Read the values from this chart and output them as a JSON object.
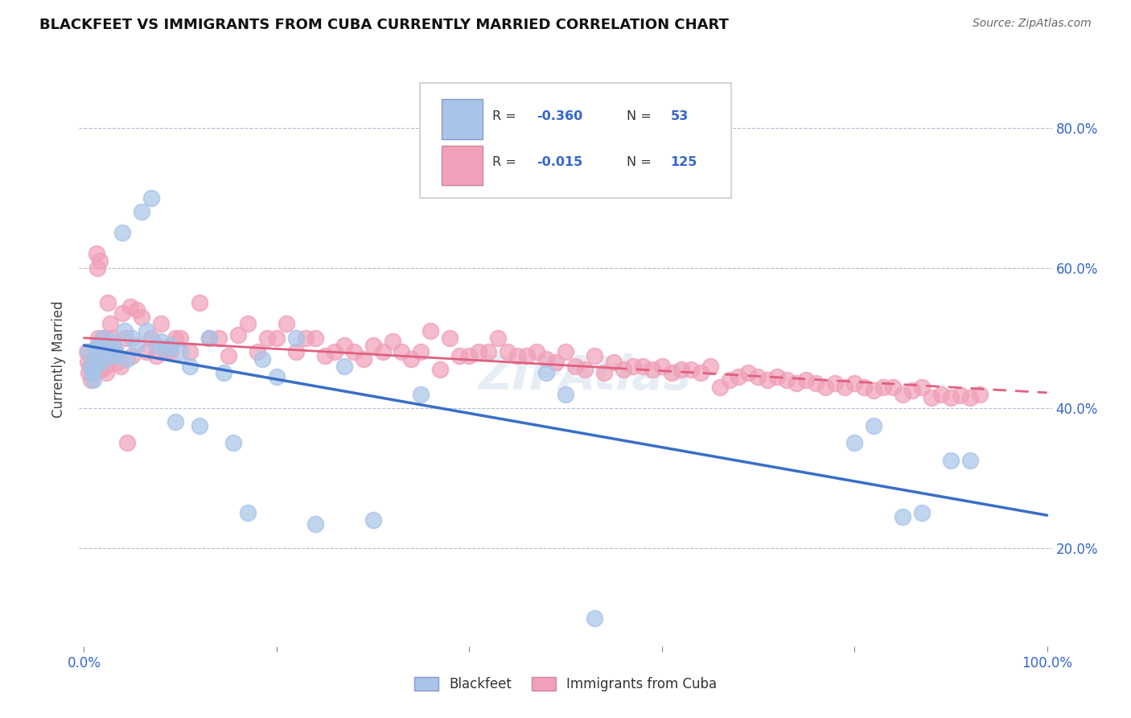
{
  "title": "BLACKFEET VS IMMIGRANTS FROM CUBA CURRENTLY MARRIED CORRELATION CHART",
  "source": "Source: ZipAtlas.com",
  "ylabel": "Currently Married",
  "legend_label1": "Blackfeet",
  "legend_label2": "Immigrants from Cuba",
  "color_blue": "#a8c4e8",
  "color_pink": "#f0a0b8",
  "line_blue": "#3a6ec8",
  "line_pink": "#e06080",
  "watermark": "ZIPAtlas",
  "yticks": [
    0.2,
    0.4,
    0.6,
    0.8
  ],
  "ytick_labels": [
    "20.0%",
    "40.0%",
    "60.0%",
    "80.0%"
  ],
  "xlim": [
    -0.005,
    1.005
  ],
  "ylim": [
    0.06,
    0.88
  ],
  "blackfeet_x": [
    0.005,
    0.007,
    0.008,
    0.009,
    0.01,
    0.012,
    0.013,
    0.015,
    0.016,
    0.018,
    0.02,
    0.022,
    0.025,
    0.027,
    0.03,
    0.032,
    0.035,
    0.04,
    0.042,
    0.045,
    0.05,
    0.055,
    0.06,
    0.065,
    0.07,
    0.075,
    0.08,
    0.085,
    0.09,
    0.095,
    0.1,
    0.11,
    0.12,
    0.13,
    0.145,
    0.155,
    0.17,
    0.185,
    0.2,
    0.22,
    0.24,
    0.27,
    0.3,
    0.35,
    0.48,
    0.5,
    0.53,
    0.8,
    0.82,
    0.85,
    0.87,
    0.9,
    0.92
  ],
  "blackfeet_y": [
    0.48,
    0.46,
    0.455,
    0.45,
    0.44,
    0.485,
    0.475,
    0.49,
    0.47,
    0.465,
    0.5,
    0.48,
    0.49,
    0.475,
    0.495,
    0.485,
    0.475,
    0.65,
    0.51,
    0.47,
    0.5,
    0.49,
    0.68,
    0.51,
    0.7,
    0.49,
    0.495,
    0.485,
    0.49,
    0.38,
    0.48,
    0.46,
    0.375,
    0.5,
    0.45,
    0.35,
    0.25,
    0.47,
    0.445,
    0.5,
    0.235,
    0.46,
    0.24,
    0.42,
    0.45,
    0.42,
    0.1,
    0.35,
    0.375,
    0.245,
    0.25,
    0.325,
    0.325
  ],
  "cuba_x": [
    0.003,
    0.004,
    0.005,
    0.006,
    0.007,
    0.008,
    0.009,
    0.01,
    0.011,
    0.012,
    0.013,
    0.014,
    0.015,
    0.016,
    0.017,
    0.018,
    0.019,
    0.02,
    0.021,
    0.022,
    0.023,
    0.025,
    0.027,
    0.03,
    0.032,
    0.035,
    0.038,
    0.04,
    0.043,
    0.045,
    0.048,
    0.05,
    0.055,
    0.06,
    0.065,
    0.07,
    0.075,
    0.08,
    0.085,
    0.09,
    0.095,
    0.1,
    0.11,
    0.12,
    0.13,
    0.14,
    0.15,
    0.16,
    0.17,
    0.18,
    0.19,
    0.2,
    0.21,
    0.22,
    0.23,
    0.24,
    0.25,
    0.26,
    0.27,
    0.28,
    0.29,
    0.3,
    0.31,
    0.32,
    0.33,
    0.34,
    0.35,
    0.36,
    0.37,
    0.38,
    0.39,
    0.4,
    0.41,
    0.42,
    0.43,
    0.44,
    0.45,
    0.46,
    0.47,
    0.48,
    0.49,
    0.5,
    0.51,
    0.52,
    0.53,
    0.54,
    0.55,
    0.56,
    0.57,
    0.58,
    0.59,
    0.6,
    0.61,
    0.62,
    0.63,
    0.64,
    0.65,
    0.66,
    0.67,
    0.68,
    0.69,
    0.7,
    0.71,
    0.72,
    0.73,
    0.74,
    0.75,
    0.76,
    0.77,
    0.78,
    0.79,
    0.8,
    0.81,
    0.82,
    0.83,
    0.84,
    0.85,
    0.86,
    0.87,
    0.88,
    0.89,
    0.9,
    0.91,
    0.92,
    0.93
  ],
  "cuba_y": [
    0.48,
    0.465,
    0.45,
    0.46,
    0.44,
    0.455,
    0.465,
    0.47,
    0.45,
    0.46,
    0.62,
    0.6,
    0.5,
    0.61,
    0.47,
    0.455,
    0.465,
    0.5,
    0.48,
    0.46,
    0.45,
    0.55,
    0.52,
    0.5,
    0.48,
    0.465,
    0.46,
    0.535,
    0.5,
    0.35,
    0.545,
    0.475,
    0.54,
    0.53,
    0.48,
    0.5,
    0.475,
    0.52,
    0.48,
    0.48,
    0.5,
    0.5,
    0.48,
    0.55,
    0.5,
    0.5,
    0.475,
    0.505,
    0.52,
    0.48,
    0.5,
    0.5,
    0.52,
    0.48,
    0.5,
    0.5,
    0.475,
    0.48,
    0.49,
    0.48,
    0.47,
    0.49,
    0.48,
    0.495,
    0.48,
    0.47,
    0.48,
    0.51,
    0.455,
    0.5,
    0.475,
    0.475,
    0.48,
    0.48,
    0.5,
    0.48,
    0.475,
    0.475,
    0.48,
    0.47,
    0.465,
    0.48,
    0.46,
    0.455,
    0.475,
    0.45,
    0.465,
    0.455,
    0.46,
    0.46,
    0.455,
    0.46,
    0.45,
    0.455,
    0.455,
    0.45,
    0.46,
    0.43,
    0.44,
    0.445,
    0.45,
    0.445,
    0.44,
    0.445,
    0.44,
    0.435,
    0.44,
    0.435,
    0.43,
    0.435,
    0.43,
    0.435,
    0.43,
    0.425,
    0.43,
    0.43,
    0.42,
    0.425,
    0.43,
    0.415,
    0.42,
    0.415,
    0.418,
    0.415,
    0.42
  ]
}
